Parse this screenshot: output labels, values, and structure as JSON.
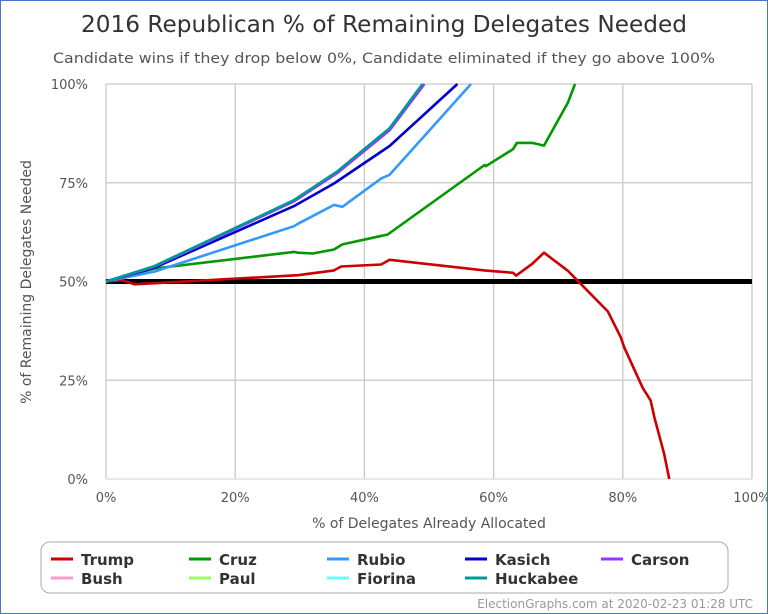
{
  "chart_data": {
    "type": "line",
    "title": "2016 Republican % of Remaining Delegates Needed",
    "subtitle": "Candidate wins if they drop below 0%, Candidate eliminated if they go above 100%",
    "xlabel": "% of Delegates Already Allocated",
    "ylabel": "% of Remaining Delegates Needed",
    "xlim": [
      0,
      100
    ],
    "ylim": [
      0,
      100
    ],
    "x_ticks": [
      "0%",
      "20%",
      "40%",
      "60%",
      "80%",
      "100%"
    ],
    "y_ticks": [
      "0%",
      "25%",
      "50%",
      "75%",
      "100%"
    ],
    "x_tick_values": [
      0,
      20,
      40,
      60,
      80,
      100
    ],
    "y_tick_values": [
      0,
      25,
      50,
      75,
      100
    ],
    "grid": true,
    "reference_line": {
      "y": 50,
      "color": "#000000"
    },
    "legend_position": "bottom",
    "series": [
      {
        "name": "Trump",
        "color": "#cc0000",
        "points": [
          [
            0,
            50.1
          ],
          [
            2.6,
            50.3
          ],
          [
            4.4,
            49.3
          ],
          [
            29.7,
            51.6
          ],
          [
            35.3,
            52.8
          ],
          [
            36.4,
            53.8
          ],
          [
            42.6,
            54.3
          ],
          [
            43.9,
            55.5
          ],
          [
            58.6,
            52.8
          ],
          [
            63.0,
            52.2
          ],
          [
            63.5,
            51.5
          ],
          [
            66.0,
            54.5
          ],
          [
            67.8,
            57.3
          ],
          [
            71.5,
            52.7
          ],
          [
            77.7,
            42.4
          ],
          [
            79.7,
            35.8
          ],
          [
            80.2,
            33.4
          ],
          [
            83.1,
            23.0
          ],
          [
            84.3,
            19.9
          ],
          [
            84.9,
            15.5
          ],
          [
            86.4,
            6.4
          ],
          [
            87.2,
            0
          ]
        ]
      },
      {
        "name": "Cruz",
        "color": "#009900",
        "points": [
          [
            0,
            50
          ],
          [
            7.5,
            53.3
          ],
          [
            29.1,
            57.5
          ],
          [
            29.7,
            57.3
          ],
          [
            32.0,
            57.1
          ],
          [
            35.3,
            58.1
          ],
          [
            36.6,
            59.4
          ],
          [
            43.6,
            61.9
          ],
          [
            58.6,
            79.5
          ],
          [
            58.8,
            79.2
          ],
          [
            63.0,
            83.5
          ],
          [
            63.6,
            85.1
          ],
          [
            66.0,
            85.1
          ],
          [
            67.8,
            84.4
          ],
          [
            71.5,
            95.3
          ],
          [
            72.6,
            100
          ]
        ]
      },
      {
        "name": "Rubio",
        "color": "#3399ff",
        "points": [
          [
            0,
            50
          ],
          [
            7.5,
            52.5
          ],
          [
            29.1,
            64.0
          ],
          [
            29.7,
            64.6
          ],
          [
            35.3,
            69.4
          ],
          [
            36.6,
            68.9
          ],
          [
            42.6,
            76.1
          ],
          [
            43.9,
            77.0
          ],
          [
            56.5,
            100
          ]
        ]
      },
      {
        "name": "Kasich",
        "color": "#0000cc",
        "points": [
          [
            0,
            50
          ],
          [
            7.5,
            53.5
          ],
          [
            29.1,
            69.1
          ],
          [
            35.3,
            74.8
          ],
          [
            43.9,
            84.3
          ],
          [
            54.4,
            100
          ]
        ]
      },
      {
        "name": "Carson",
        "color": "#9933ff",
        "points": [
          [
            0,
            50
          ],
          [
            7.5,
            53.8
          ],
          [
            29.1,
            70.3
          ],
          [
            35.9,
            77.6
          ],
          [
            43.9,
            88.3
          ],
          [
            49.3,
            100
          ]
        ]
      },
      {
        "name": "Bush",
        "color": "#ff99cc",
        "points": [
          [
            0,
            50
          ],
          [
            7.5,
            53.8
          ],
          [
            29.1,
            70.3
          ],
          [
            35.9,
            77.6
          ],
          [
            43.9,
            88.3
          ],
          [
            49.2,
            100
          ]
        ]
      },
      {
        "name": "Paul",
        "color": "#99ff66",
        "points": [
          [
            0,
            50
          ],
          [
            3.0,
            51.5
          ]
        ]
      },
      {
        "name": "Fiorina",
        "color": "#66ffff",
        "points": [
          [
            0,
            50
          ],
          [
            3.0,
            51.6
          ]
        ]
      },
      {
        "name": "Huckabee",
        "color": "#009999",
        "points": [
          [
            0,
            50
          ],
          [
            7.5,
            53.9
          ],
          [
            29.1,
            70.6
          ],
          [
            35.9,
            78.0
          ],
          [
            43.9,
            88.8
          ],
          [
            49.0,
            100
          ]
        ]
      }
    ],
    "legend_order": [
      "Trump",
      "Cruz",
      "Rubio",
      "Kasich",
      "Carson",
      "Bush",
      "Paul",
      "Fiorina",
      "Huckabee"
    ]
  },
  "footer": "ElectionGraphs.com at 2020-02-23 01:28 UTC"
}
